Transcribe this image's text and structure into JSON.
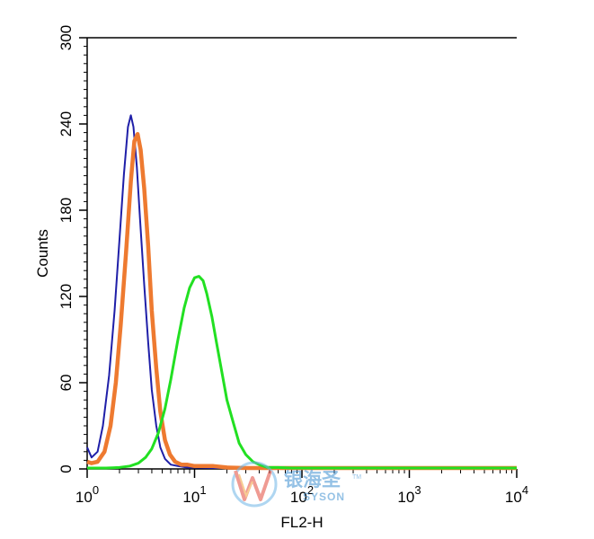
{
  "chart_data": {
    "type": "line",
    "title": "",
    "xlabel": "FL2-H",
    "ylabel": "Counts",
    "x_scale": "log",
    "xlim": [
      1,
      10000
    ],
    "ylim": [
      0,
      300
    ],
    "x_ticks": [
      {
        "base": "10",
        "exp": "0",
        "value": 1
      },
      {
        "base": "10",
        "exp": "1",
        "value": 10
      },
      {
        "base": "10",
        "exp": "2",
        "value": 100
      },
      {
        "base": "10",
        "exp": "3",
        "value": 1000
      },
      {
        "base": "10",
        "exp": "4",
        "value": 10000
      }
    ],
    "y_ticks": [
      "0",
      "60",
      "120",
      "180",
      "240",
      "300"
    ],
    "grid": false,
    "series": [
      {
        "color": "#1f1fa8",
        "x": [
          1.0,
          1.1,
          1.25,
          1.4,
          1.6,
          1.8,
          2.0,
          2.2,
          2.4,
          2.55,
          2.7,
          2.9,
          3.1,
          3.4,
          3.7,
          4.0,
          4.4,
          4.8,
          5.3,
          6.0,
          7.0,
          8.5,
          10,
          15,
          30,
          100,
          1000,
          10000
        ],
        "y": [
          15,
          8,
          12,
          30,
          65,
          110,
          160,
          205,
          238,
          246,
          238,
          210,
          175,
          128,
          88,
          55,
          30,
          15,
          7,
          3,
          2,
          1,
          1,
          0,
          0,
          0,
          0,
          0
        ]
      },
      {
        "color": "#ee7a30",
        "x": [
          1.0,
          1.1,
          1.25,
          1.45,
          1.65,
          1.85,
          2.05,
          2.3,
          2.55,
          2.75,
          2.95,
          3.15,
          3.4,
          3.7,
          4.0,
          4.4,
          4.8,
          5.3,
          5.9,
          6.6,
          7.5,
          8.5,
          10,
          12,
          15,
          20,
          30,
          100,
          1000,
          10000
        ],
        "y": [
          5,
          4,
          5,
          12,
          30,
          60,
          100,
          150,
          200,
          228,
          233,
          222,
          195,
          155,
          110,
          70,
          40,
          20,
          10,
          5,
          3,
          3,
          2,
          2,
          2,
          1,
          0,
          0,
          0,
          0
        ]
      },
      {
        "color": "#22e022",
        "x": [
          1.0,
          1.5,
          2.0,
          2.5,
          3.0,
          3.5,
          4.0,
          4.6,
          5.3,
          6.0,
          7.0,
          8.0,
          9.0,
          10.0,
          11.0,
          12.0,
          13.0,
          14.5,
          16.0,
          18.0,
          20.0,
          23.0,
          26.0,
          30.0,
          35.0,
          40.0,
          48.0,
          60.0,
          80.0,
          100.0,
          1000.0,
          10000.0
        ],
        "y": [
          0,
          0,
          1,
          2,
          4,
          8,
          14,
          25,
          42,
          62,
          90,
          112,
          126,
          133,
          134,
          131,
          122,
          106,
          88,
          67,
          48,
          32,
          18,
          10,
          5,
          3,
          1,
          1,
          0,
          0,
          0,
          0
        ]
      }
    ]
  },
  "watermark": {
    "cn_text": "银海圣",
    "en_text": "SYSON",
    "tm": "TM"
  }
}
